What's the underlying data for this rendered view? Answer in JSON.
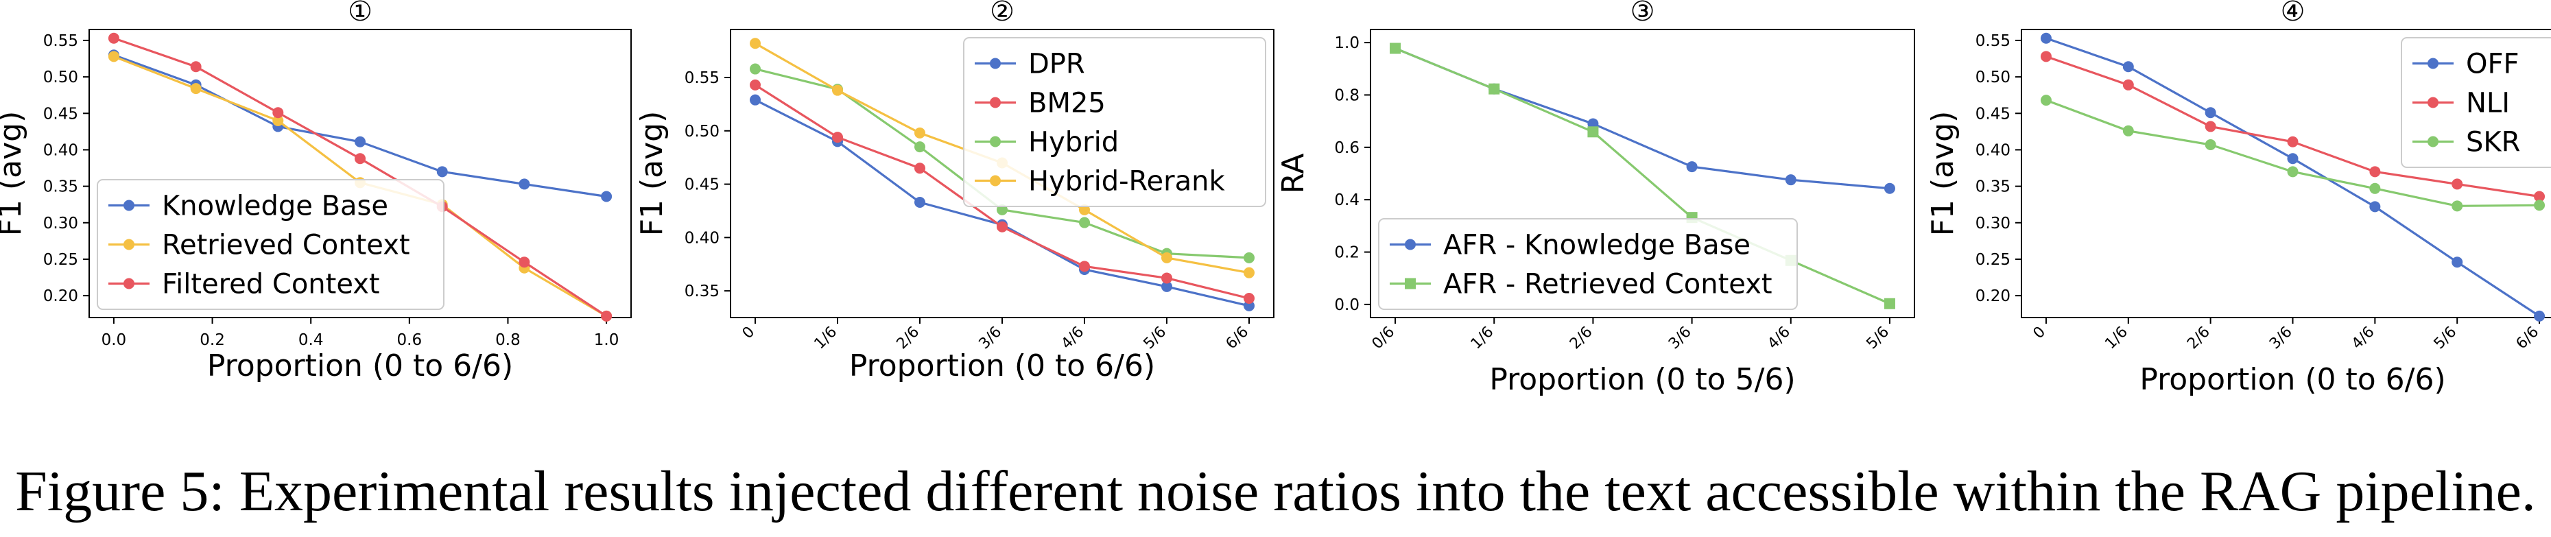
{
  "caption": "Figure 5: Experimental results injected different noise ratios into the text accessible within the RAG pipeline.",
  "colors": {
    "blue": "#4c72c8",
    "red": "#e8565e",
    "green": "#86c96e",
    "yellow": "#f5c042",
    "axis": "#000000"
  },
  "chart_data": [
    {
      "type": "line",
      "title": "①",
      "xlabel": "Proportion (0 to 6/6)",
      "ylabel": "F1 (avg)",
      "xlim": [
        -0.05,
        1.05
      ],
      "ylim": [
        0.17,
        0.565
      ],
      "xticks": [
        0.0,
        0.2,
        0.4,
        0.6,
        0.8,
        1.0
      ],
      "xticklabels": [
        "0.0",
        "0.2",
        "0.4",
        "0.6",
        "0.8",
        "1.0"
      ],
      "yticks": [
        0.2,
        0.25,
        0.3,
        0.35,
        0.4,
        0.45,
        0.5,
        0.55
      ],
      "yticklabels": [
        "0.20",
        "0.25",
        "0.30",
        "0.35",
        "0.40",
        "0.45",
        "0.50",
        "0.55"
      ],
      "x": [
        0.0,
        0.1667,
        0.3333,
        0.5,
        0.6667,
        0.8333,
        1.0
      ],
      "legend_loc": "lower-left",
      "series": [
        {
          "name": "Knowledge Base",
          "color": "#4c72c8",
          "marker": "circle",
          "values": [
            0.53,
            0.489,
            0.432,
            0.411,
            0.37,
            0.353,
            0.336
          ]
        },
        {
          "name": "Retrieved Context",
          "color": "#f5c042",
          "marker": "circle",
          "values": [
            0.528,
            0.484,
            0.44,
            0.355,
            0.325,
            0.238,
            0.172
          ]
        },
        {
          "name": "Filtered Context",
          "color": "#e8565e",
          "marker": "circle",
          "values": [
            0.553,
            0.514,
            0.451,
            0.388,
            0.322,
            0.246,
            0.172
          ]
        }
      ]
    },
    {
      "type": "line",
      "title": "②",
      "xlabel": "Proportion (0 to 6/6)",
      "ylabel": "F1 (avg)",
      "xlim": [
        -0.3,
        6.3
      ],
      "ylim": [
        0.325,
        0.595
      ],
      "xticks": [
        0,
        1,
        2,
        3,
        4,
        5,
        6
      ],
      "xticklabels": [
        "0",
        "1/6",
        "2/6",
        "3/6",
        "4/6",
        "5/6",
        "6/6"
      ],
      "yticks": [
        0.35,
        0.4,
        0.45,
        0.5,
        0.55
      ],
      "yticklabels": [
        "0.35",
        "0.40",
        "0.45",
        "0.50",
        "0.55"
      ],
      "x": [
        0,
        1,
        2,
        3,
        4,
        5,
        6
      ],
      "legend_loc": "upper-right",
      "series": [
        {
          "name": "DPR",
          "color": "#4c72c8",
          "marker": "circle",
          "values": [
            0.529,
            0.49,
            0.433,
            0.412,
            0.37,
            0.354,
            0.336
          ]
        },
        {
          "name": "BM25",
          "color": "#e8565e",
          "marker": "circle",
          "values": [
            0.543,
            0.494,
            0.465,
            0.41,
            0.373,
            0.362,
            0.343
          ]
        },
        {
          "name": "Hybrid",
          "color": "#86c96e",
          "marker": "circle",
          "values": [
            0.558,
            0.539,
            0.485,
            0.426,
            0.414,
            0.385,
            0.381
          ]
        },
        {
          "name": "Hybrid-Rerank",
          "color": "#f5c042",
          "marker": "circle",
          "values": [
            0.582,
            0.538,
            0.498,
            0.47,
            0.426,
            0.381,
            0.367
          ]
        }
      ]
    },
    {
      "type": "line",
      "title": "③",
      "xlabel": "Proportion (0 to 5/6)",
      "ylabel": "RA",
      "xlim": [
        -0.25,
        5.25
      ],
      "ylim": [
        -0.05,
        1.05
      ],
      "xticks": [
        0,
        1,
        2,
        3,
        4,
        5
      ],
      "xticklabels": [
        "0/6",
        "1/6",
        "2/6",
        "3/6",
        "4/6",
        "5/6"
      ],
      "yticks": [
        0.0,
        0.2,
        0.4,
        0.6,
        0.8,
        1.0
      ],
      "yticklabels": [
        "0.0",
        "0.2",
        "0.4",
        "0.6",
        "0.8",
        "1.0"
      ],
      "x": [
        0,
        1,
        2,
        3,
        4,
        5
      ],
      "legend_loc": "lower-left",
      "series": [
        {
          "name": "AFR - Knowledge Base",
          "color": "#4c72c8",
          "marker": "circle",
          "values": [
            0.978,
            0.823,
            0.69,
            0.526,
            0.476,
            0.443
          ]
        },
        {
          "name": "AFR - Retrieved Context",
          "color": "#86c96e",
          "marker": "square",
          "values": [
            0.978,
            0.823,
            0.659,
            0.332,
            0.168,
            0.003
          ]
        }
      ]
    },
    {
      "type": "line",
      "title": "④",
      "xlabel": "Proportion (0 to 6/6)",
      "ylabel": "F1 (avg)",
      "xlim": [
        -0.3,
        6.3
      ],
      "ylim": [
        0.17,
        0.565
      ],
      "xticks": [
        0,
        1,
        2,
        3,
        4,
        5,
        6
      ],
      "xticklabels": [
        "0",
        "1/6",
        "2/6",
        "3/6",
        "4/6",
        "5/6",
        "6/6"
      ],
      "yticks": [
        0.2,
        0.25,
        0.3,
        0.35,
        0.4,
        0.45,
        0.5,
        0.55
      ],
      "yticklabels": [
        "0.20",
        "0.25",
        "0.30",
        "0.35",
        "0.40",
        "0.45",
        "0.50",
        "0.55"
      ],
      "x": [
        0,
        1,
        2,
        3,
        4,
        5,
        6
      ],
      "legend_loc": "upper-right",
      "series": [
        {
          "name": "OFF",
          "color": "#4c72c8",
          "marker": "circle",
          "values": [
            0.553,
            0.514,
            0.451,
            0.388,
            0.322,
            0.246,
            0.172
          ]
        },
        {
          "name": "NLI",
          "color": "#e8565e",
          "marker": "circle",
          "values": [
            0.528,
            0.489,
            0.432,
            0.411,
            0.37,
            0.353,
            0.336
          ]
        },
        {
          "name": "SKR",
          "color": "#86c96e",
          "marker": "circle",
          "values": [
            0.468,
            0.426,
            0.407,
            0.37,
            0.347,
            0.323,
            0.324
          ]
        }
      ]
    }
  ]
}
